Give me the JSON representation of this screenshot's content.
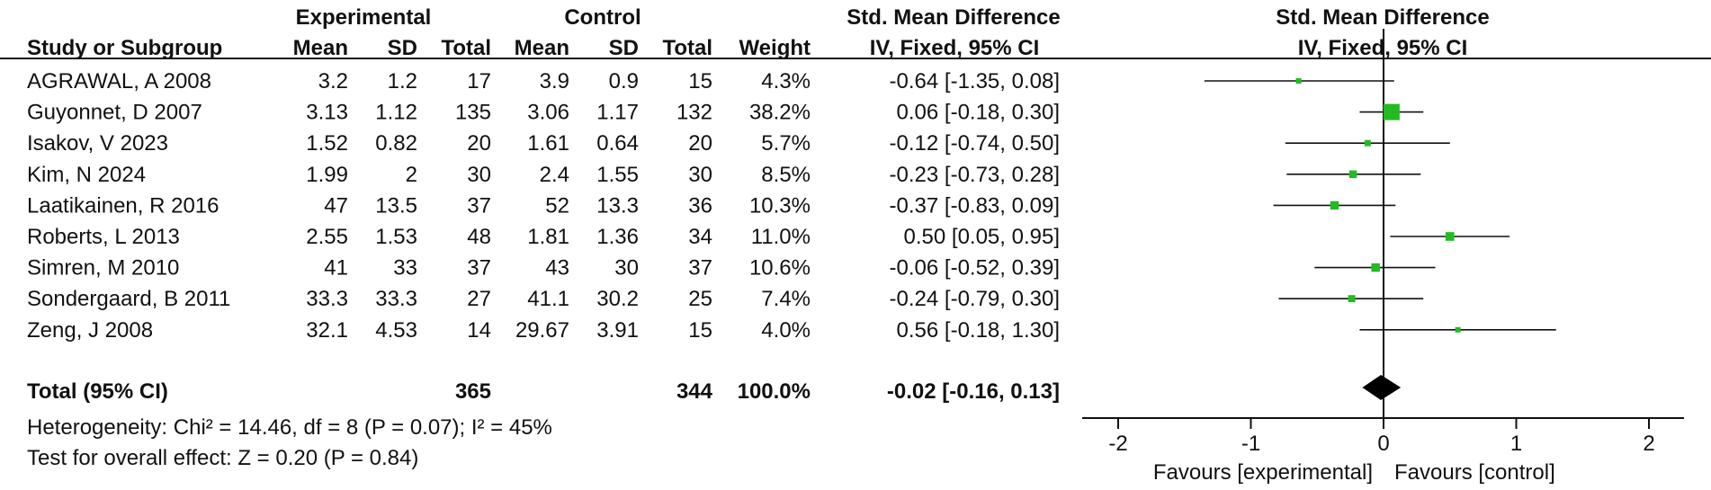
{
  "chart_data": {
    "type": "forest",
    "headers": {
      "group_experimental": "Experimental",
      "group_control": "Control",
      "effect_title": "Std. Mean Difference",
      "plot_title": "Std. Mean Difference",
      "study": "Study or Subgroup",
      "mean": "Mean",
      "sd": "SD",
      "total": "Total",
      "weight": "Weight",
      "effect_method": "IV, Fixed, 95% CI",
      "plot_method": "IV, Fixed, 95% CI"
    },
    "studies": [
      {
        "name": "AGRAWAL, A 2008",
        "e_mean": "3.2",
        "e_sd": "1.2",
        "e_total": "17",
        "c_mean": "3.9",
        "c_sd": "0.9",
        "c_total": "15",
        "weight": "4.3%",
        "ci_text": "-0.64 [-1.35, 0.08]",
        "est": -0.64,
        "lo": -1.35,
        "hi": 0.08,
        "w": 4.3
      },
      {
        "name": "Guyonnet, D 2007",
        "e_mean": "3.13",
        "e_sd": "1.12",
        "e_total": "135",
        "c_mean": "3.06",
        "c_sd": "1.17",
        "c_total": "132",
        "weight": "38.2%",
        "ci_text": "0.06 [-0.18, 0.30]",
        "est": 0.06,
        "lo": -0.18,
        "hi": 0.3,
        "w": 38.2
      },
      {
        "name": "Isakov, V 2023",
        "e_mean": "1.52",
        "e_sd": "0.82",
        "e_total": "20",
        "c_mean": "1.61",
        "c_sd": "0.64",
        "c_total": "20",
        "weight": "5.7%",
        "ci_text": "-0.12 [-0.74, 0.50]",
        "est": -0.12,
        "lo": -0.74,
        "hi": 0.5,
        "w": 5.7
      },
      {
        "name": "Kim, N 2024",
        "e_mean": "1.99",
        "e_sd": "2",
        "e_total": "30",
        "c_mean": "2.4",
        "c_sd": "1.55",
        "c_total": "30",
        "weight": "8.5%",
        "ci_text": "-0.23 [-0.73, 0.28]",
        "est": -0.23,
        "lo": -0.73,
        "hi": 0.28,
        "w": 8.5
      },
      {
        "name": "Laatikainen, R 2016",
        "e_mean": "47",
        "e_sd": "13.5",
        "e_total": "37",
        "c_mean": "52",
        "c_sd": "13.3",
        "c_total": "36",
        "weight": "10.3%",
        "ci_text": "-0.37 [-0.83, 0.09]",
        "est": -0.37,
        "lo": -0.83,
        "hi": 0.09,
        "w": 10.3
      },
      {
        "name": "Roberts, L 2013",
        "e_mean": "2.55",
        "e_sd": "1.53",
        "e_total": "48",
        "c_mean": "1.81",
        "c_sd": "1.36",
        "c_total": "34",
        "weight": "11.0%",
        "ci_text": "0.50 [0.05, 0.95]",
        "est": 0.5,
        "lo": 0.05,
        "hi": 0.95,
        "w": 11.0
      },
      {
        "name": "Simren, M 2010",
        "e_mean": "41",
        "e_sd": "33",
        "e_total": "37",
        "c_mean": "43",
        "c_sd": "30",
        "c_total": "37",
        "weight": "10.6%",
        "ci_text": "-0.06 [-0.52, 0.39]",
        "est": -0.06,
        "lo": -0.52,
        "hi": 0.39,
        "w": 10.6
      },
      {
        "name": "Sondergaard, B 2011",
        "e_mean": "33.3",
        "e_sd": "33.3",
        "e_total": "27",
        "c_mean": "41.1",
        "c_sd": "30.2",
        "c_total": "25",
        "weight": "7.4%",
        "ci_text": "-0.24 [-0.79, 0.30]",
        "est": -0.24,
        "lo": -0.79,
        "hi": 0.3,
        "w": 7.4
      },
      {
        "name": "Zeng, J 2008",
        "e_mean": "32.1",
        "e_sd": "4.53",
        "e_total": "14",
        "c_mean": "29.67",
        "c_sd": "3.91",
        "c_total": "15",
        "weight": "4.0%",
        "ci_text": "0.56 [-0.18, 1.30]",
        "est": 0.56,
        "lo": -0.18,
        "hi": 1.3,
        "w": 4.0
      }
    ],
    "total": {
      "label": "Total (95% CI)",
      "e_total": "365",
      "c_total": "344",
      "weight": "100.0%",
      "ci_text": "-0.02 [-0.16, 0.13]",
      "est": -0.02,
      "lo": -0.16,
      "hi": 0.13
    },
    "heterogeneity": "Heterogeneity: Chi² = 14.46, df = 8 (P = 0.07); I² = 45%",
    "overall_effect": "Test for overall effect: Z = 0.20 (P = 0.84)",
    "xlim": [
      -2,
      2
    ],
    "xticks": [
      -2,
      -1,
      0,
      1,
      2
    ],
    "xtick_labels": [
      "-2",
      "-1",
      "0",
      "1",
      "2"
    ],
    "favours_left": "Favours [experimental]",
    "favours_right": "Favours [control]",
    "colors": {
      "marker": "#22bb22",
      "lines": "#111111",
      "diamond": "#000000"
    }
  }
}
